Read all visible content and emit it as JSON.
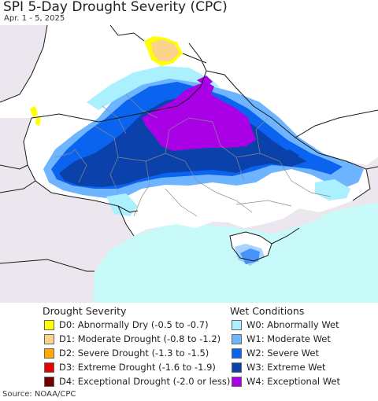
{
  "header": {
    "title": "SPI 5-Day Drought Severity (CPC)",
    "subtitle": "Apr. 1 - 5, 2025"
  },
  "colors": {
    "outside": "#ece6ee",
    "land": "#ffffff",
    "sea": "#c8fafa",
    "border_country": "#1a1a1a",
    "border_oblast": "#8a8a8a"
  },
  "legend": {
    "drought": {
      "title": "Drought Severity",
      "items": [
        {
          "code": "D0",
          "label": "D0: Abnormally Dry (-0.5 to -0.7)",
          "color": "#ffff00"
        },
        {
          "code": "D1",
          "label": "D1: Moderate Drought (-0.8 to -1.2)",
          "color": "#fcd38a"
        },
        {
          "code": "D2",
          "label": "D2: Severe Drought (-1.3 to -1.5)",
          "color": "#ffaa00"
        },
        {
          "code": "D3",
          "label": "D3: Extreme Drought (-1.6 to -1.9)",
          "color": "#e60000"
        },
        {
          "code": "D4",
          "label": "D4: Exceptional Drought (-2.0 or less)",
          "color": "#730000"
        }
      ]
    },
    "wet": {
      "title": "Wet Conditions",
      "items": [
        {
          "code": "W0",
          "label": "W0: Abnormally Wet",
          "color": "#aaf0ff"
        },
        {
          "code": "W1",
          "label": "W1: Moderate Wet",
          "color": "#6eb4ff"
        },
        {
          "code": "W2",
          "label": "W2: Severe Wet",
          "color": "#0a64f0"
        },
        {
          "code": "W3",
          "label": "W3: Extreme Wet",
          "color": "#0a41aa"
        },
        {
          "code": "W4",
          "label": "W4: Exceptional Wet",
          "color": "#aa00e6"
        }
      ]
    }
  },
  "source": "Source: NOAA/CPC"
}
